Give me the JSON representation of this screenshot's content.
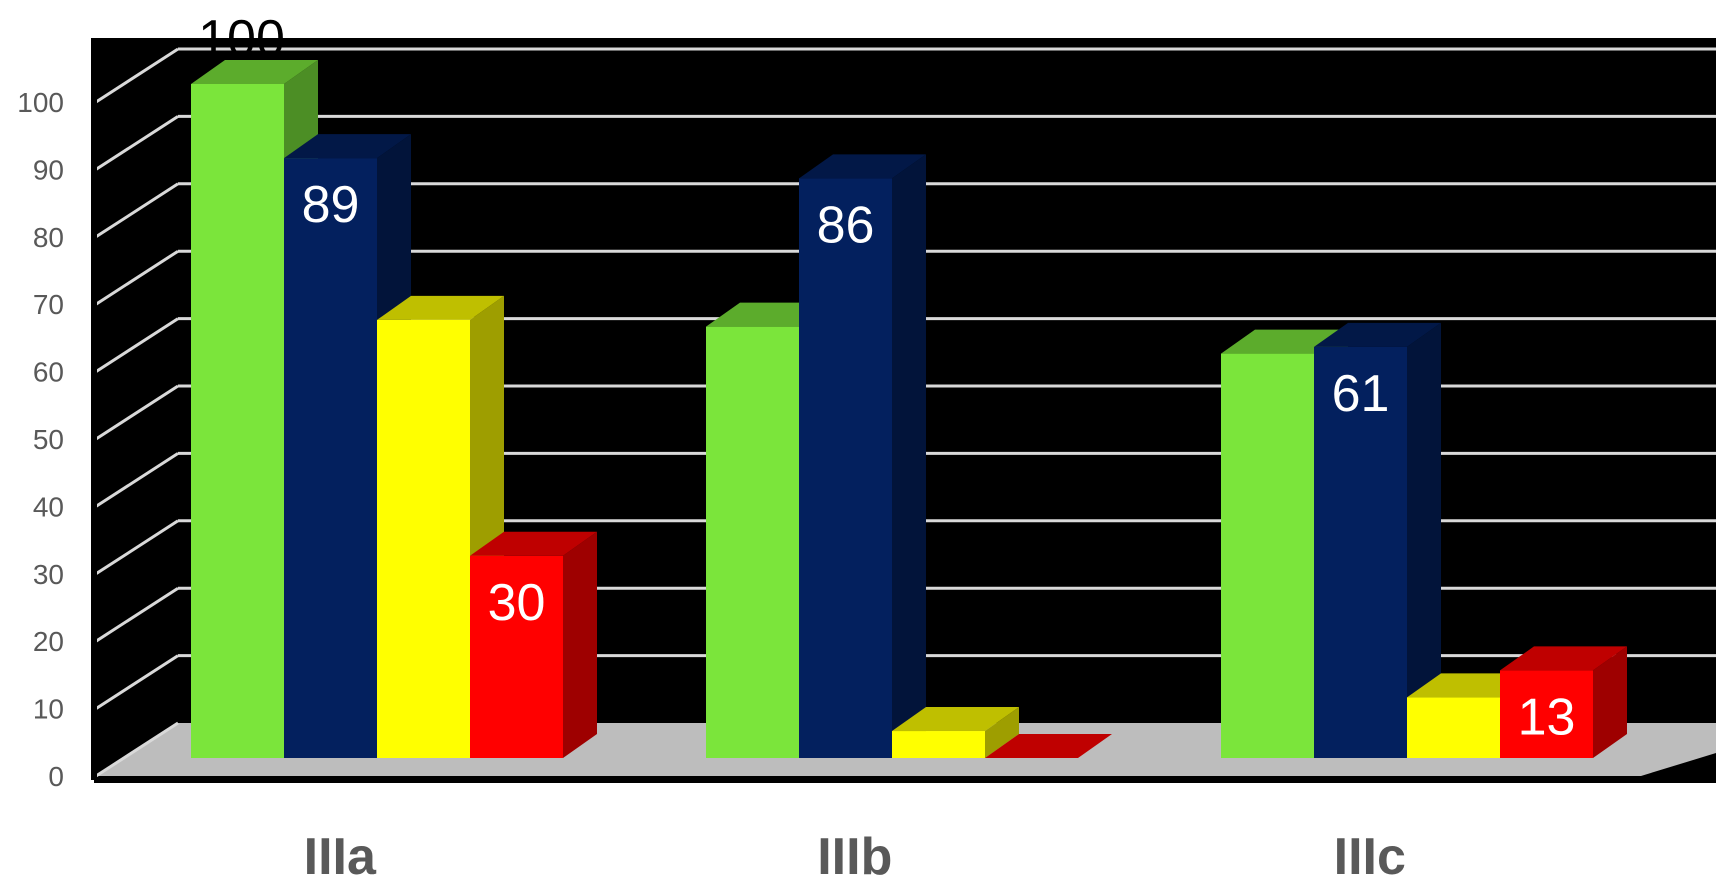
{
  "chart_data": {
    "type": "bar",
    "style": "3d-clustered-column",
    "title": "",
    "xlabel": "",
    "ylabel": "",
    "ylim": [
      0,
      100
    ],
    "yticks": [
      "0",
      "10",
      "20",
      "30",
      "40",
      "50",
      "60",
      "70",
      "80",
      "90",
      "100"
    ],
    "categories": [
      "IIIa",
      "IIIb",
      "IIIc"
    ],
    "grid": true,
    "legend": "none",
    "background_color": "#000000",
    "floor_color": "#bdbdbd",
    "series": [
      {
        "color": "#7be53b",
        "values": [
          100,
          64,
          60
        ],
        "data_labels": [
          "100",
          "",
          ""
        ]
      },
      {
        "color": "#03205e",
        "values": [
          89,
          86,
          61
        ],
        "data_labels": [
          "89",
          "86",
          "61"
        ]
      },
      {
        "color": "#ffff00",
        "values": [
          65,
          4,
          9
        ],
        "data_labels": [
          "",
          "",
          ""
        ]
      },
      {
        "color": "#ff0000",
        "values": [
          30,
          0,
          13
        ],
        "data_labels": [
          "30",
          "",
          "13"
        ]
      }
    ]
  }
}
